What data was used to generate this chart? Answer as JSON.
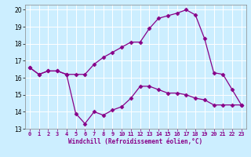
{
  "xlabel": "Windchill (Refroidissement éolien,°C)",
  "bg_color": "#cceeff",
  "line_color": "#880088",
  "grid_color": "#ffffff",
  "xlim": [
    -0.5,
    23.5
  ],
  "ylim": [
    13,
    20.3
  ],
  "xticks": [
    0,
    1,
    2,
    3,
    4,
    5,
    6,
    7,
    8,
    9,
    10,
    11,
    12,
    13,
    14,
    15,
    16,
    17,
    18,
    19,
    20,
    21,
    22,
    23
  ],
  "yticks": [
    13,
    14,
    15,
    16,
    17,
    18,
    19,
    20
  ],
  "line1_x": [
    0,
    1,
    2,
    3,
    4,
    5,
    6,
    7,
    8,
    9,
    10,
    11,
    12,
    13,
    14,
    15,
    16,
    17,
    18,
    19,
    20,
    21,
    22,
    23
  ],
  "line1_y": [
    16.6,
    16.2,
    16.4,
    16.4,
    16.2,
    16.2,
    16.2,
    16.8,
    17.2,
    17.5,
    17.8,
    18.1,
    18.1,
    18.9,
    19.5,
    19.65,
    19.8,
    20.0,
    19.7,
    18.3,
    16.3,
    16.2,
    15.3,
    14.4
  ],
  "line2_x": [
    0,
    1,
    2,
    3,
    4,
    5,
    6,
    7,
    8,
    9,
    10,
    11,
    12,
    13,
    14,
    15,
    16,
    17,
    18,
    19,
    20,
    21,
    22,
    23
  ],
  "line2_y": [
    16.6,
    16.2,
    16.4,
    16.4,
    16.2,
    13.9,
    13.3,
    14.0,
    13.8,
    14.1,
    14.3,
    14.8,
    15.5,
    15.5,
    15.3,
    15.1,
    15.1,
    15.0,
    14.8,
    14.7,
    14.4,
    14.4,
    14.4,
    14.4
  ]
}
